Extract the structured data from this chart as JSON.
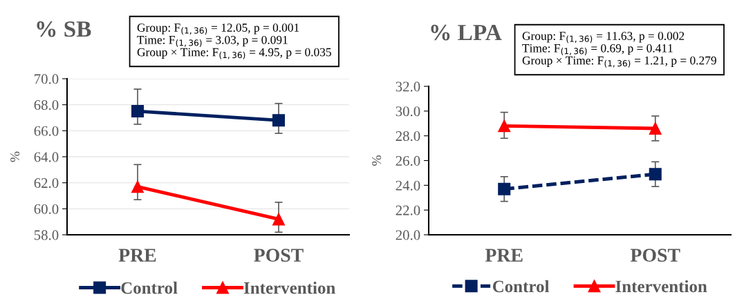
{
  "chart_data": [
    {
      "type": "line",
      "title": "% SB",
      "ylabel": "%",
      "categories": [
        "PRE",
        "POST"
      ],
      "ylim": [
        58,
        70
      ],
      "yticks": [
        {
          "value": 58,
          "label": "58.0"
        },
        {
          "value": 60,
          "label": "60.0"
        },
        {
          "value": 62,
          "label": "62.0"
        },
        {
          "value": 64,
          "label": "64.0"
        },
        {
          "value": 66,
          "label": "66.0"
        },
        {
          "value": 68,
          "label": "68.0"
        },
        {
          "value": 70,
          "label": "70.0"
        }
      ],
      "grid": "y",
      "legend": "bottom",
      "annotations": [
        "Group: F$_{(1,36)}$ = 12.05, p = 0.001\nTime: F$_{(1,36)}$ = 3.03, p = 0.091\nGroup × Time: F$_{(1,36)}$ = 4.95, p = 0.035"
      ],
      "series": [
        {
          "name": "Control",
          "color": "#002060",
          "marker": "square",
          "line_style": "solid",
          "values": [
            67.5,
            66.8
          ],
          "errors": [
            [
              66.5,
              69.2
            ],
            [
              65.8,
              68.1
            ]
          ]
        },
        {
          "name": "Intervention",
          "color": "#ff0000",
          "marker": "triangle",
          "line_style": "solid",
          "values": [
            61.7,
            59.2
          ],
          "errors": [
            [
              60.7,
              63.4
            ],
            [
              58.2,
              60.5
            ]
          ]
        }
      ]
    },
    {
      "type": "line",
      "title": "% LPA",
      "ylabel": "%",
      "categories": [
        "PRE",
        "POST"
      ],
      "ylim": [
        20,
        32
      ],
      "yticks": [
        {
          "value": 20,
          "label": "20.0"
        },
        {
          "value": 22,
          "label": "22.0"
        },
        {
          "value": 24,
          "label": "24.0"
        },
        {
          "value": 26,
          "label": "26.0"
        },
        {
          "value": 28,
          "label": "28.0"
        },
        {
          "value": 30,
          "label": "30.0"
        },
        {
          "value": 32,
          "label": "32.0"
        }
      ],
      "grid": false,
      "legend": "bottom",
      "annotations": [
        "Group: F$_{(1,36)}$ = 11.63, p = 0.002\nTime: F$_{(1,36)}$ = 0.69, p = 0.411\nGroup × Time: F$_{(1,36)}$ = 1.21, p = 0.279"
      ],
      "series": [
        {
          "name": "Control",
          "color": "#002060",
          "marker": "square",
          "line_style": "dashed",
          "values": [
            23.7,
            24.9
          ],
          "errors": [
            [
              22.7,
              24.7
            ],
            [
              23.9,
              25.9
            ]
          ]
        },
        {
          "name": "Intervention",
          "color": "#ff0000",
          "marker": "triangle",
          "line_style": "solid",
          "values": [
            28.8,
            28.6
          ],
          "errors": [
            [
              27.8,
              29.9
            ],
            [
              27.6,
              29.6
            ]
          ]
        }
      ]
    }
  ]
}
